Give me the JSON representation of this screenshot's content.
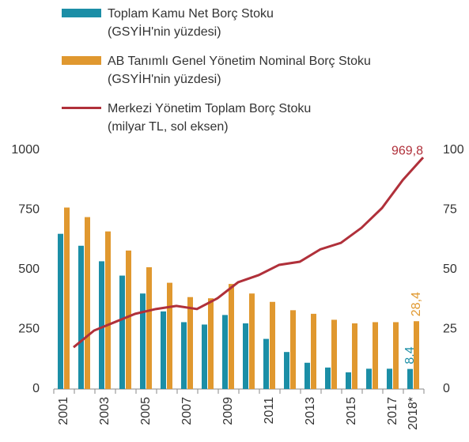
{
  "chart_data": {
    "type": "bar",
    "categories": [
      "2001",
      null,
      "2003",
      null,
      "2005",
      null,
      "2007",
      null,
      "2009",
      null,
      "2011",
      null,
      "2013",
      null,
      "2015",
      null,
      "2017",
      "2018*"
    ],
    "series": [
      {
        "name": "Toplam Kamu Net Borç Stoku\n(GSYİH'nin yüzdesi)",
        "color": "#1b8ea6",
        "axis": "y2",
        "values": [
          65,
          60,
          53.5,
          47.5,
          40,
          32.5,
          28,
          27,
          31,
          27.5,
          21,
          15.5,
          11,
          9,
          7,
          8.5,
          8.5,
          8.4
        ],
        "value_labels": [
          null,
          null,
          null,
          null,
          null,
          null,
          null,
          null,
          null,
          null,
          null,
          null,
          null,
          null,
          null,
          null,
          null,
          "8,4"
        ]
      },
      {
        "name": "AB Tanımlı Genel Yönetim Nominal Borç Stoku\n(GSYİH'nin yüzdesi)",
        "color": "#e0982f",
        "axis": "y2",
        "values": [
          76,
          72,
          66,
          58,
          51,
          44.5,
          38.5,
          38,
          44,
          40,
          36.5,
          33,
          31.5,
          29,
          27.5,
          28,
          28,
          28.4
        ],
        "value_labels": [
          null,
          null,
          null,
          null,
          null,
          null,
          null,
          null,
          null,
          null,
          null,
          null,
          null,
          null,
          null,
          null,
          null,
          "28,4"
        ]
      },
      {
        "name": "Merkezi Yönetim Toplam Borç Stoku\n(milyar TL, sol eksen)",
        "color": "#b0303a",
        "type": "line",
        "values": [
          175,
          245,
          280,
          315,
          335,
          348,
          335,
          380,
          447,
          477,
          520,
          533,
          585,
          612,
          675,
          758,
          874,
          969.8
        ],
        "value_labels": [
          null,
          null,
          null,
          null,
          null,
          null,
          null,
          null,
          null,
          null,
          null,
          null,
          null,
          null,
          null,
          null,
          null,
          "969,8"
        ]
      }
    ],
    "ylim": [
      0,
      1000
    ],
    "yticks": [
      0,
      250,
      500,
      750,
      1000
    ],
    "y2lim": [
      0,
      100
    ],
    "y2ticks": [
      0,
      25,
      50,
      75,
      100
    ]
  }
}
